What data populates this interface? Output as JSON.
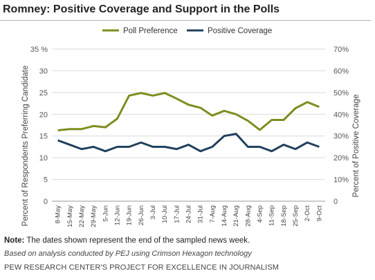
{
  "title": "Romney: Positive Coverage and Support in the Polls",
  "note_label": "Note:",
  "note_text": " The dates shown represent the end of the sampled news week.",
  "source": "Based on analysis conducted by PEJ using Crimson Hexagon technology",
  "credit": "PEW RESEARCH CENTER'S PROJECT FOR EXCELLENCE IN JOURNALISM",
  "chart_data": {
    "type": "line",
    "categories": [
      "8-May",
      "15-May",
      "22-May",
      "29-May",
      "5-Jun",
      "12-Jun",
      "19-Jun",
      "26-Jun",
      "3-Jul",
      "10-Jul",
      "17-Jul",
      "24-Jul",
      "31-Jul",
      "7-Aug",
      "14-Aug",
      "21-Aug",
      "28-Aug",
      "4-Sep",
      "11-Sep",
      "18-Sep",
      "25-Sep",
      "2-Oct",
      "9-Oct"
    ],
    "ylabel": "Percent of Respondents Preferring Candidate",
    "y2label": "Percent of Positive Coverage",
    "ylim": [
      0,
      35
    ],
    "y2lim": [
      0,
      70
    ],
    "yticks": [
      "0",
      "5",
      "10",
      "15",
      "20",
      "25",
      "30",
      "35 %"
    ],
    "y2ticks": [
      "0",
      "10%",
      "20%",
      "30%",
      "40%",
      "50%",
      "60%",
      "70%"
    ],
    "legend_position": "top",
    "series": [
      {
        "name": "Poll Preference",
        "axis": "left",
        "color": "#7f8c1f",
        "values": [
          16.3,
          16.6,
          16.6,
          17.3,
          17.0,
          19.0,
          24.3,
          24.9,
          24.3,
          24.9,
          23.6,
          22.2,
          21.5,
          19.7,
          20.8,
          20.0,
          18.5,
          16.4,
          18.7,
          18.7,
          21.4,
          22.8,
          21.7
        ]
      },
      {
        "name": "Positive Coverage",
        "axis": "right",
        "color": "#1f3f5c",
        "values": [
          28,
          26,
          24,
          25,
          23,
          25,
          25,
          27,
          25,
          25,
          24,
          26,
          23,
          25,
          30,
          31,
          25,
          25,
          23,
          26,
          24,
          27,
          25
        ]
      }
    ],
    "grid": "horizontal"
  }
}
